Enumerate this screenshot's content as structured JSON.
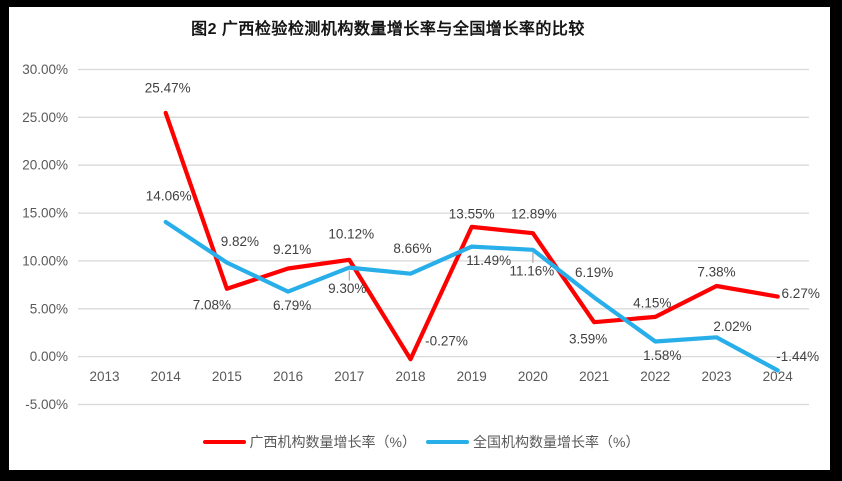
{
  "chart": {
    "title": "图2 广西检验检测机构数量增长率与全国增长率的比较"
  },
  "chart_data": {
    "type": "line",
    "title": "图2 广西检验检测机构数量增长率与全国增长率的比较",
    "categories": [
      "2013",
      "2014",
      "2015",
      "2016",
      "2017",
      "2018",
      "2019",
      "2020",
      "2021",
      "2022",
      "2023",
      "2024"
    ],
    "series": [
      {
        "name": "广西机构数量增长率（%）",
        "color": "#FF0000",
        "values": [
          null,
          25.47,
          7.08,
          9.21,
          10.12,
          -0.27,
          13.55,
          12.89,
          3.59,
          4.15,
          7.38,
          6.27
        ],
        "label_offsets": [
          null,
          [
            2,
            -25
          ],
          [
            -15,
            16
          ],
          [
            4,
            -19
          ],
          [
            2,
            -26
          ],
          [
            36,
            -18
          ],
          [
            0,
            -13
          ],
          [
            1,
            -19
          ],
          [
            -6,
            17
          ],
          [
            -3,
            -14
          ],
          [
            0,
            -14
          ],
          [
            23,
            -3
          ]
        ]
      },
      {
        "name": "全国机构数量增长率（%）",
        "color": "#28AFEA",
        "values": [
          null,
          14.06,
          9.82,
          6.79,
          9.3,
          8.66,
          11.49,
          11.16,
          6.19,
          1.58,
          2.02,
          -1.44
        ],
        "label_offsets": [
          null,
          [
            3,
            -26
          ],
          [
            13,
            -21
          ],
          [
            4,
            14
          ],
          [
            -2,
            21
          ],
          [
            2,
            -25
          ],
          [
            17,
            14
          ],
          [
            -1,
            21
          ],
          [
            0,
            -25
          ],
          [
            7,
            14
          ],
          [
            16,
            -11
          ],
          [
            20,
            -14
          ]
        ]
      }
    ],
    "xlabel": "",
    "ylabel": "",
    "ylim": [
      -5,
      30
    ],
    "ytick_step": 5,
    "yticks": [
      "30.00%",
      "25.00%",
      "20.00%",
      "15.00%",
      "10.00%",
      "5.00%",
      "0.00%",
      "-5.00%"
    ],
    "ytick_values": [
      30,
      25,
      20,
      15,
      10,
      5,
      0,
      -5
    ],
    "label_format": "0.00%",
    "grid": true,
    "gridline_color": "#d9d9d9",
    "leader_lines": [
      {
        "series": 1,
        "index": 4
      },
      {
        "series": 1,
        "index": 7
      }
    ],
    "legend_position": "bottom"
  }
}
